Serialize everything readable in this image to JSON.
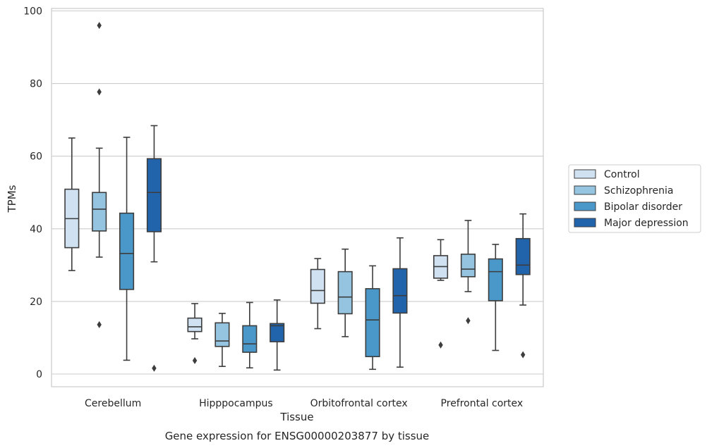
{
  "chart_data": {
    "type": "box",
    "title": "",
    "caption": "Gene expression for ENSG00000203877 by tissue",
    "xlabel": "Tissue",
    "ylabel": "TPMs",
    "ylim": [
      -3,
      101
    ],
    "yticks": [
      0,
      20,
      40,
      60,
      80,
      100
    ],
    "grid": "horizontal",
    "legend_position": "right",
    "categories": [
      "Cerebellum",
      "Hipppocampus",
      "Orbitofrontal cortex",
      "Prefrontal cortex"
    ],
    "series": [
      {
        "name": "Control",
        "color": "#d0e1f2",
        "boxes": [
          {
            "whisker_low": 28.5,
            "q1": 34.8,
            "median": 42.8,
            "q3": 50.9,
            "whisker_high": 65.0,
            "outliers": []
          },
          {
            "whisker_low": 9.7,
            "q1": 11.7,
            "median": 13.0,
            "q3": 15.4,
            "whisker_high": 19.4,
            "outliers": [
              3.7
            ]
          },
          {
            "whisker_low": 12.5,
            "q1": 19.5,
            "median": 23.0,
            "q3": 28.8,
            "whisker_high": 31.8,
            "outliers": []
          },
          {
            "whisker_low": 25.8,
            "q1": 26.4,
            "median": 29.6,
            "q3": 32.6,
            "whisker_high": 37.0,
            "outliers": [
              8.0
            ]
          }
        ]
      },
      {
        "name": "Schizophrenia",
        "color": "#94c4df",
        "boxes": [
          {
            "whisker_low": 32.2,
            "q1": 39.4,
            "median": 45.4,
            "q3": 50.0,
            "whisker_high": 62.2,
            "outliers": [
              13.6,
              77.7,
              96.0
            ]
          },
          {
            "whisker_low": 2.1,
            "q1": 7.6,
            "median": 9.1,
            "q3": 14.1,
            "whisker_high": 16.7,
            "outliers": []
          },
          {
            "whisker_low": 10.3,
            "q1": 16.6,
            "median": 21.2,
            "q3": 28.2,
            "whisker_high": 34.4,
            "outliers": []
          },
          {
            "whisker_low": 22.7,
            "q1": 26.8,
            "median": 28.9,
            "q3": 33.0,
            "whisker_high": 42.3,
            "outliers": [
              14.7
            ]
          }
        ]
      },
      {
        "name": "Bipolar disorder",
        "color": "#4a98c9",
        "boxes": [
          {
            "whisker_low": 3.8,
            "q1": 23.3,
            "median": 33.2,
            "q3": 44.3,
            "whisker_high": 65.2,
            "outliers": []
          },
          {
            "whisker_low": 1.7,
            "q1": 6.0,
            "median": 8.3,
            "q3": 13.3,
            "whisker_high": 19.7,
            "outliers": []
          },
          {
            "whisker_low": 1.3,
            "q1": 4.8,
            "median": 14.9,
            "q3": 23.5,
            "whisker_high": 29.8,
            "outliers": []
          },
          {
            "whisker_low": 6.5,
            "q1": 20.2,
            "median": 28.2,
            "q3": 31.7,
            "whisker_high": 35.7,
            "outliers": []
          }
        ]
      },
      {
        "name": "Major depression",
        "color": "#2164ab",
        "boxes": [
          {
            "whisker_low": 30.9,
            "q1": 39.2,
            "median": 50.0,
            "q3": 59.3,
            "whisker_high": 68.4,
            "outliers": [
              1.6
            ]
          },
          {
            "whisker_low": 1.1,
            "q1": 8.9,
            "median": 13.3,
            "q3": 13.9,
            "whisker_high": 20.4,
            "outliers": []
          },
          {
            "whisker_low": 1.9,
            "q1": 16.8,
            "median": 21.6,
            "q3": 29.0,
            "whisker_high": 37.5,
            "outliers": []
          },
          {
            "whisker_low": 19.0,
            "q1": 27.4,
            "median": 30.0,
            "q3": 37.3,
            "whisker_high": 44.1,
            "outliers": [
              5.3
            ]
          }
        ]
      }
    ]
  }
}
